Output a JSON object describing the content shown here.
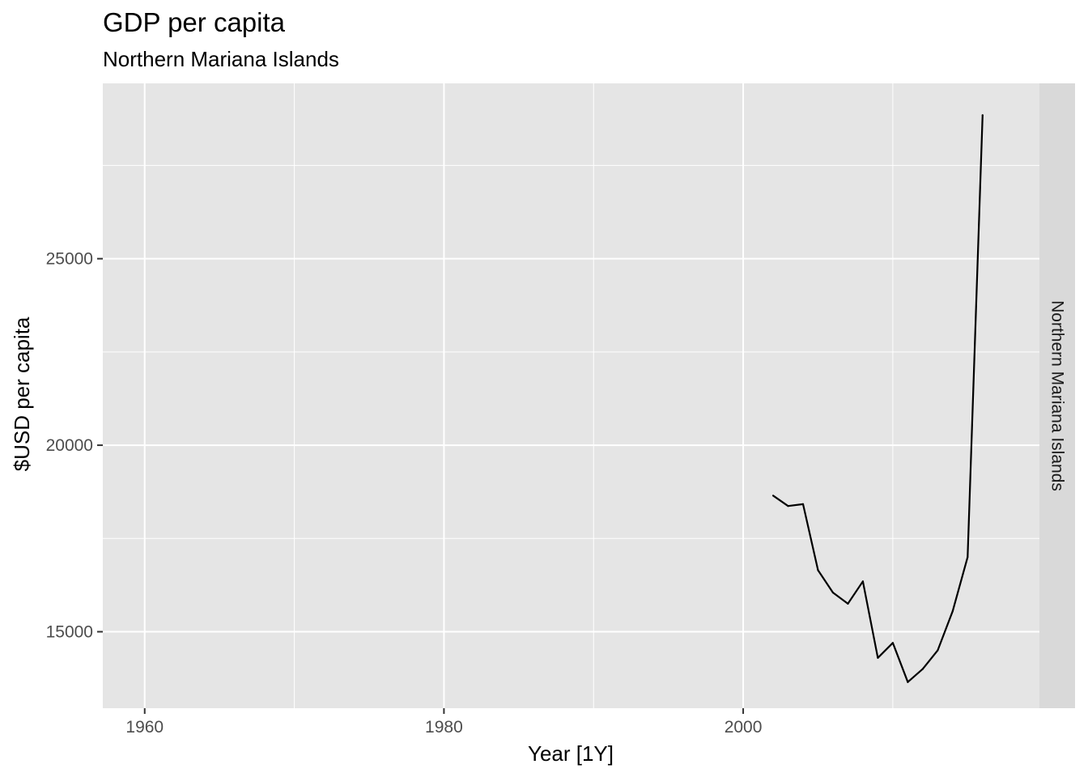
{
  "chart_data": {
    "type": "line",
    "title": "GDP per capita",
    "subtitle": "Northern Mariana Islands",
    "xlabel": "Year [1Y]",
    "ylabel": "$USD per capita",
    "facet_label": "Northern Mariana Islands",
    "xlim": [
      1957.2,
      2019.8
    ],
    "ylim": [
      12950,
      29700
    ],
    "x_ticks": [
      1960,
      1980,
      2000
    ],
    "x_minor": [
      1970,
      1990,
      2010
    ],
    "y_ticks": [
      15000,
      20000,
      25000
    ],
    "y_minor": [
      17500,
      22500,
      27500
    ],
    "grid": true,
    "series": [
      {
        "x": [
          2002,
          2003,
          2004,
          2005,
          2006,
          2007,
          2008,
          2009,
          2010,
          2011,
          2012,
          2013,
          2014,
          2015,
          2016
        ],
        "values": [
          18650,
          18370,
          18420,
          16650,
          16050,
          15750,
          16350,
          14300,
          14700,
          13650,
          14000,
          14500,
          15550,
          17000,
          28850
        ]
      }
    ],
    "line_color": "#000000",
    "panel_color": "#e5e5e5",
    "strip_color": "#d9d9d9"
  }
}
